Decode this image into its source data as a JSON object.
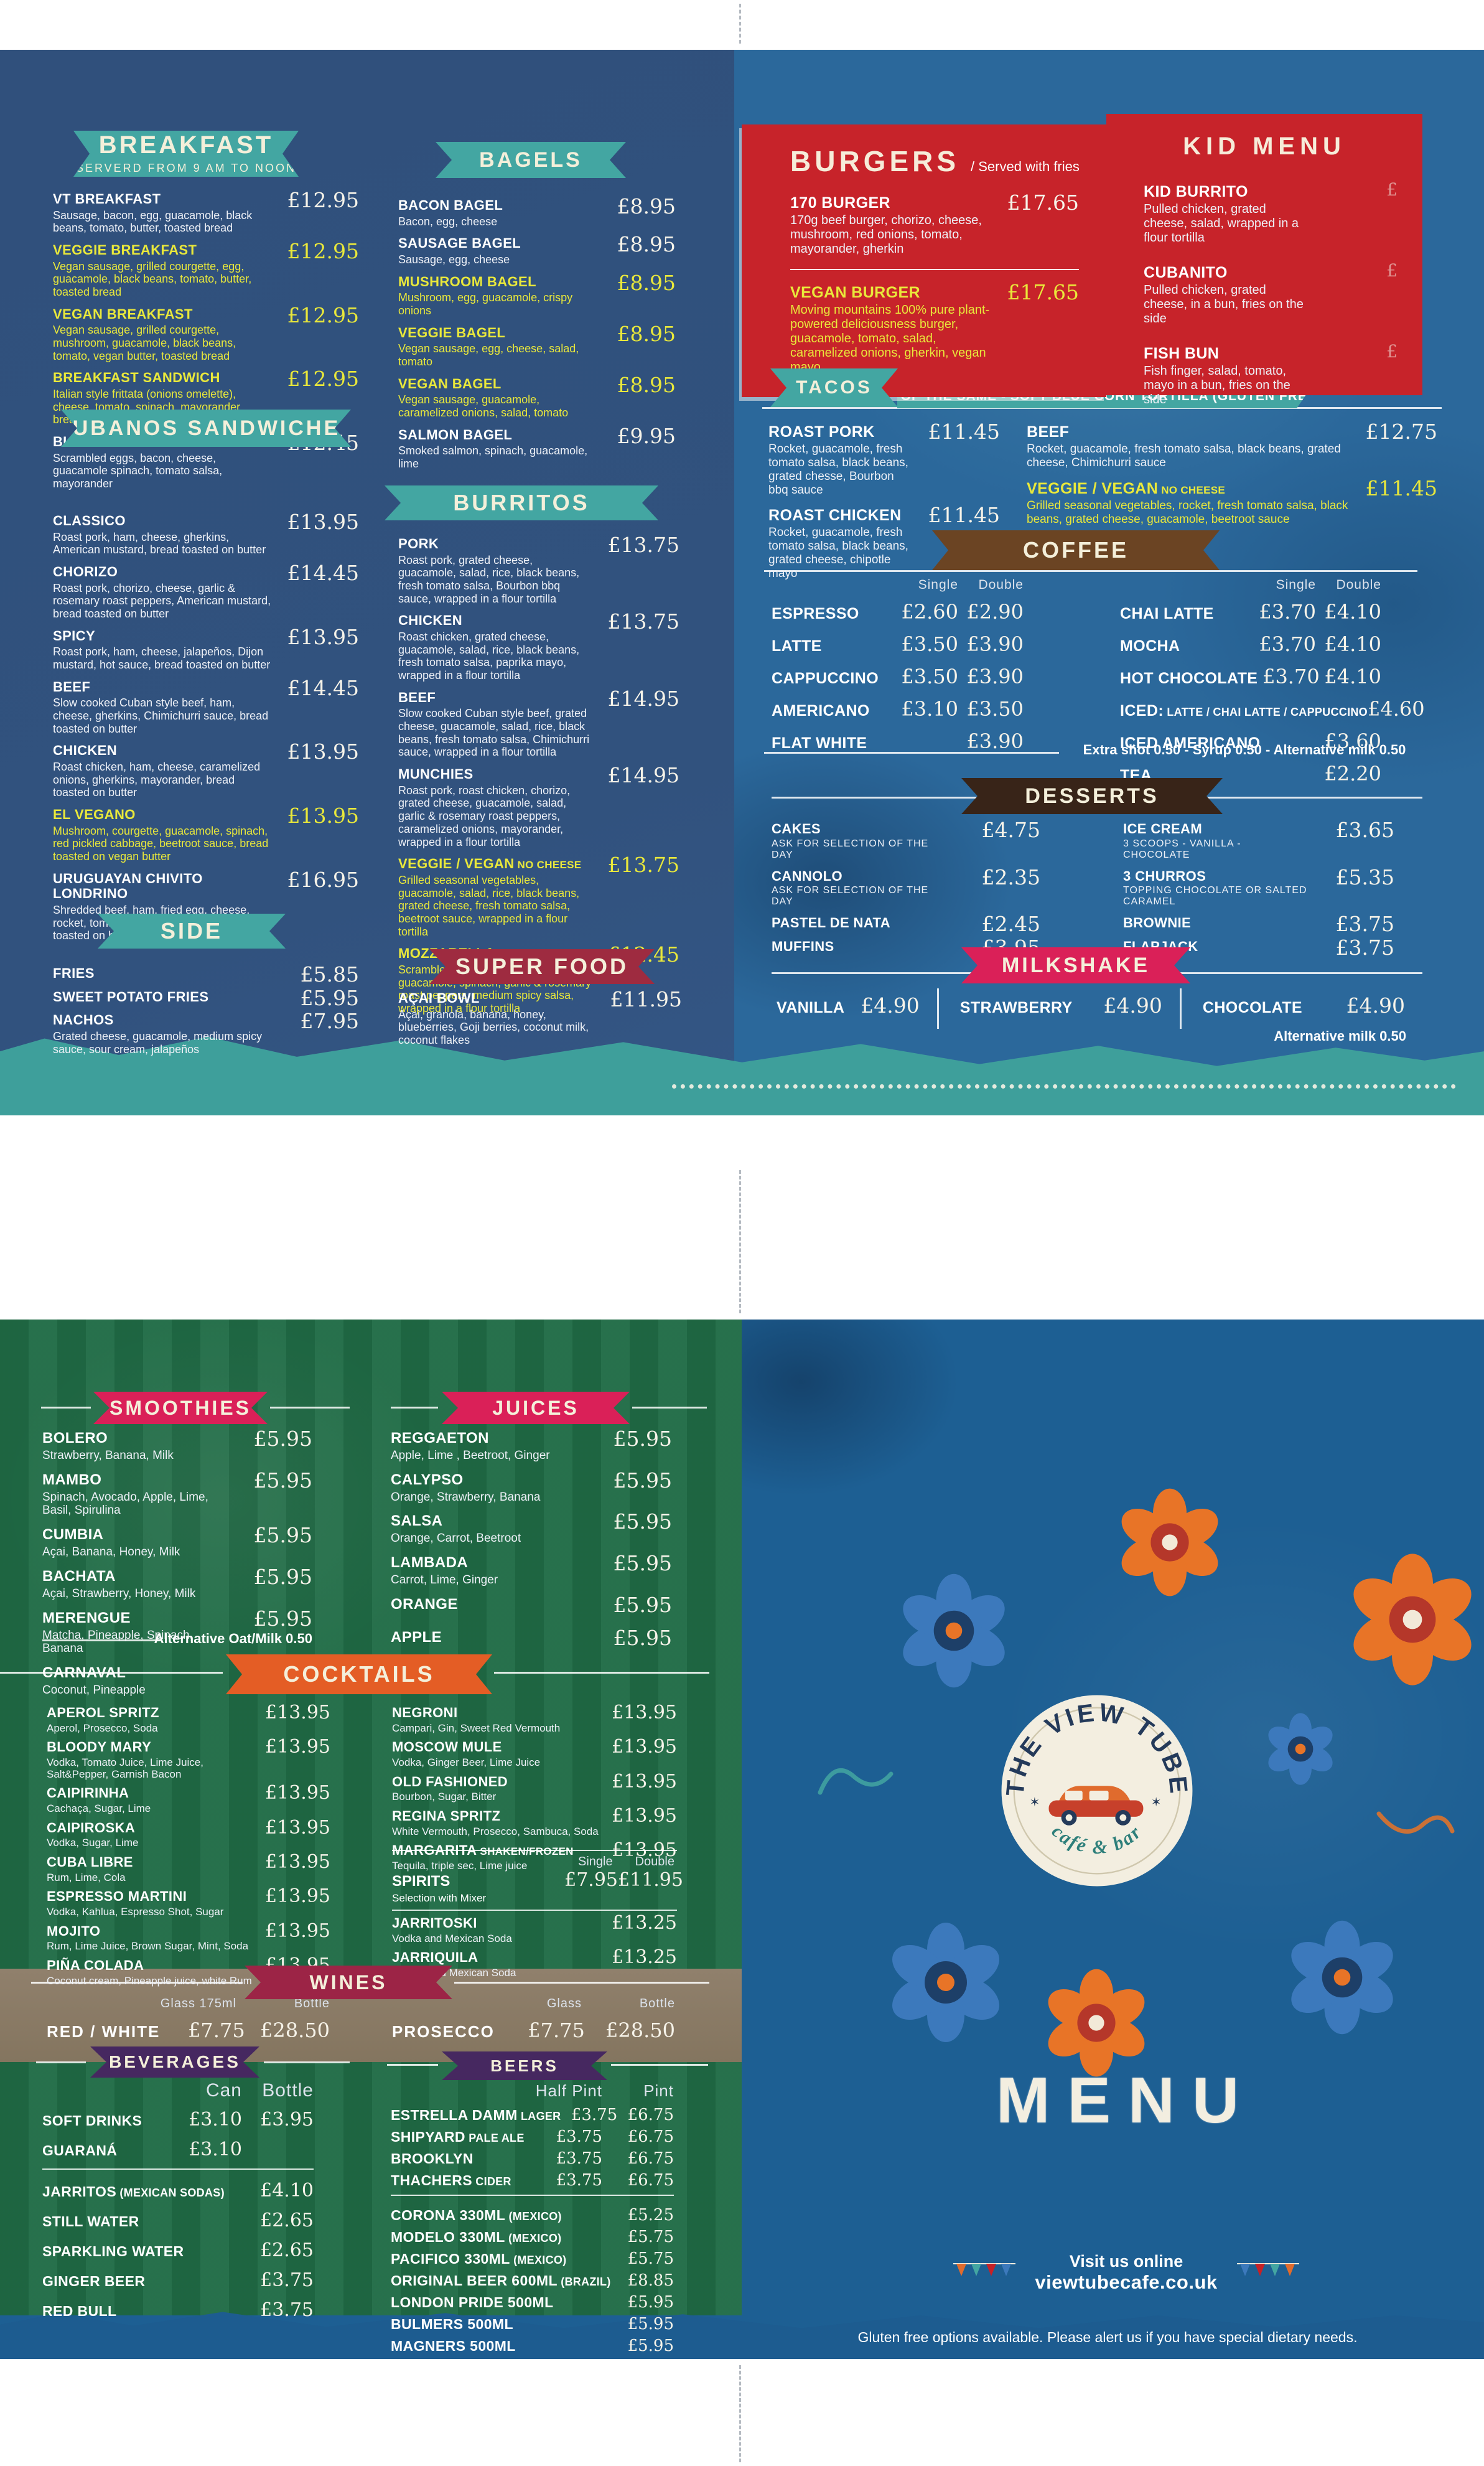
{
  "page1": {
    "breakfast": {
      "title": "BREAKFAST",
      "subtitle": "SERVERD FROM 9 AM TO NOON",
      "items": [
        {
          "n": "VT BREAKFAST",
          "p": "£12.95",
          "d": "Sausage, bacon, egg, guacamole, black beans, tomato, butter, toasted bread"
        },
        {
          "n": "VEGGIE BREAKFAST",
          "p": "£12.95",
          "y": true,
          "d": "Vegan sausage, grilled courgette, egg, guacamole, black beans, tomato, butter, toasted bread"
        },
        {
          "n": "VEGAN BREAKFAST",
          "p": "£12.95",
          "y": true,
          "d": "Vegan sausage, grilled courgette, mushroom, guacamole, black beans, tomato, vegan butter, toasted bread"
        },
        {
          "n": "BREAKFAST SANDWICH",
          "p": "£12.95",
          "y": true,
          "d": "Italian style frittata (onions omelette), cheese, tomato, spinach, mayorander, bread toasted on butter"
        },
        {
          "n": "BURRITO BREAKFAST",
          "p": "£12.45",
          "d": "Scrambled eggs, bacon, cheese, guacamole spinach, tomato salsa, mayorander"
        }
      ]
    },
    "cubanos": {
      "title": "CUBANOS SANDWICHES",
      "items": [
        {
          "n": "CLASSICO",
          "p": "£13.95",
          "d": "Roast pork, ham, cheese, gherkins, American mustard, bread toasted on butter"
        },
        {
          "n": "CHORIZO",
          "p": "£14.45",
          "d": "Roast pork, chorizo, cheese, garlic & rosemary roast peppers, American mustard, bread toasted on butter"
        },
        {
          "n": "SPICY",
          "p": "£13.95",
          "d": "Roast pork, ham, cheese, jalapeños, Dijon mustard, hot sauce, bread toasted on butter"
        },
        {
          "n": "BEEF",
          "p": "£14.45",
          "d": "Slow cooked Cuban style beef, ham, cheese, gherkins, Chimichurri sauce, bread toasted on butter"
        },
        {
          "n": "CHICKEN",
          "p": "£13.95",
          "d": "Roast chicken, ham, cheese, caramelized onions, gherkins, mayorander, bread toasted on butter"
        },
        {
          "n": "EL VEGANO",
          "p": "£13.95",
          "y": true,
          "d": "Mushroom, courgette, guacamole, spinach, red pickled cabbage, beetroot sauce, bread toasted on vegan butter"
        },
        {
          "n": "URUGUAYAN CHIVITO LONDRINO",
          "p": "£16.95",
          "d": "Shredded beef, ham, fried egg, cheese, rocket, tomato, mayonnaise, ciabatta bread toasted on butter, fries on the side"
        }
      ]
    },
    "side": {
      "title": "SIDE",
      "items": [
        {
          "n": "FRIES",
          "p": "£5.85"
        },
        {
          "n": "SWEET POTATO FRIES",
          "p": "£5.95"
        },
        {
          "n": "NACHOS",
          "p": "£7.95",
          "d": "Grated cheese, guacamole, medium spicy sauce, sour cream, jalapeños"
        }
      ]
    },
    "bagels": {
      "title": "BAGELS",
      "items": [
        {
          "n": "BACON BAGEL",
          "p": "£8.95",
          "d": "Bacon, egg, cheese"
        },
        {
          "n": "SAUSAGE BAGEL",
          "p": "£8.95",
          "d": "Sausage, egg, cheese"
        },
        {
          "n": "MUSHROOM BAGEL",
          "p": "£8.95",
          "y": true,
          "d": "Mushroom, egg, guacamole, crispy onions"
        },
        {
          "n": "VEGGIE BAGEL",
          "p": "£8.95",
          "y": true,
          "d": "Vegan sausage, egg, cheese, salad, tomato"
        },
        {
          "n": "VEGAN BAGEL",
          "p": "£8.95",
          "y": true,
          "d": "Vegan sausage, guacamole, caramelized onions, salad, tomato"
        },
        {
          "n": "SALMON BAGEL",
          "p": "£9.95",
          "d": "Smoked salmon, spinach, guacamole, lime"
        }
      ]
    },
    "burritos": {
      "title": "BURRITOS",
      "items": [
        {
          "n": "PORK",
          "p": "£13.75",
          "d": "Roast pork, grated cheese, guacamole, salad, rice, black beans, fresh tomato salsa, Bourbon bbq sauce, wrapped in a flour tortilla"
        },
        {
          "n": "CHICKEN",
          "p": "£13.75",
          "d": "Roast chicken, grated cheese, guacamole, salad, rice, black beans, fresh tomato salsa, paprika mayo, wrapped in a flour tortilla"
        },
        {
          "n": "BEEF",
          "p": "£14.95",
          "d": "Slow cooked Cuban style beef, grated cheese, guacamole, salad, rice, black beans, fresh tomato salsa, Chimichurri sauce, wrapped in a flour tortilla"
        },
        {
          "n": "MUNCHIES",
          "p": "£14.95",
          "d": "Roast pork, roast chicken, chorizo, grated cheese, guacamole, salad, garlic & rosemary roast peppers, caramelized onions, mayorander, wrapped in a flour tortilla"
        },
        {
          "n": "VEGGIE / VEGAN",
          "sfx": "NO CHEESE",
          "p": "£13.75",
          "y": true,
          "d": "Grilled seasonal vegetables, guacamole, salad, rice, black beans, grated cheese, fresh tomato salsa, beetroot sauce, wrapped in a flour tortilla"
        },
        {
          "n": "MOZZARELLA",
          "p": "£12.45",
          "y": true,
          "d": "Scrambled eggs, mozzarella cheese, guacamole, spinach, garlic & rosemary roast peppers, medium spicy salsa, wrapped in a flour tortilla"
        }
      ]
    },
    "superfood": {
      "title": "SUPER FOOD",
      "items": [
        {
          "n": "AÇAI BOWL",
          "p": "£11.95",
          "d": "Açai, granola, banana, honey, blueberries, Goji berries, coconut milk, coconut flakes"
        }
      ]
    },
    "burgers": {
      "title": "BURGERS",
      "note": "/ Served with fries",
      "items": [
        {
          "n": "170 BURGER",
          "p": "£17.65",
          "d": "170g beef burger, chorizo, cheese, mushroom, red onions, tomato, mayorander, gherkin"
        },
        {
          "n": "VEGAN BURGER",
          "p": "£17.65",
          "y": true,
          "d": "Moving mountains 100% pure plant-powered deliciousness burger, guacamole, tomato, salad, caramelized onions, gherkin, vegan mayo"
        }
      ]
    },
    "kidmenu": {
      "title": "KID MENU",
      "items": [
        {
          "n": "KID BURRITO",
          "p": "£",
          "d": "Pulled chicken, grated cheese, salad, wrapped in a flour tortilla"
        },
        {
          "n": "CUBANITO",
          "p": "£",
          "d": "Pulled chicken, grated cheese, in a bun, fries on the side"
        },
        {
          "n": "FISH BUN",
          "p": "£",
          "d": "Fish finger, salad, tomato, mayo in a bun, fries on the side"
        }
      ]
    },
    "tacos": {
      "title": "TACOS",
      "subtitle": "3 OF THE SAME - SOFT BLUE CORN TORTILLA (GLUTEN FREE)",
      "left": [
        {
          "n": "ROAST PORK",
          "p": "£11.45",
          "d": "Rocket, guacamole, fresh tomato salsa, black beans, grated chesse, Bourbon bbq sauce"
        },
        {
          "n": "ROAST CHICKEN",
          "p": "£11.45",
          "d": "Rocket, guacamole, fresh tomato salsa, black beans, grated cheese, chipotle mayo"
        }
      ],
      "right": [
        {
          "n": "BEEF",
          "p": "£12.75",
          "d": "Rocket, guacamole, fresh tomato salsa, black beans, grated cheese, Chimichurri sauce"
        },
        {
          "n": "VEGGIE / VEGAN",
          "sfx": "NO CHEESE",
          "p": "£11.45",
          "y": true,
          "d": "Grilled seasonal vegetables, rocket, fresh tomato salsa, black beans, grated cheese, guacamole, beetroot sauce"
        }
      ]
    },
    "coffee": {
      "title": "COFFEE",
      "col_single": "Single",
      "col_double": "Double",
      "left": [
        {
          "n": "ESPRESSO",
          "a": "£2.60",
          "b": "£2.90"
        },
        {
          "n": "LATTE",
          "a": "£3.50",
          "b": "£3.90"
        },
        {
          "n": "CAPPUCCINO",
          "a": "£3.50",
          "b": "£3.90"
        },
        {
          "n": "AMERICANO",
          "a": "£3.10",
          "b": "£3.50"
        },
        {
          "n": "FLAT WHITE",
          "a": "",
          "b": "£3.90"
        }
      ],
      "right": [
        {
          "n": "CHAI LATTE",
          "a": "£3.70",
          "b": "£4.10"
        },
        {
          "n": "MOCHA",
          "a": "£3.70",
          "b": "£4.10"
        },
        {
          "n": "HOT CHOCOLATE",
          "a": "£3.70",
          "b": "£4.10"
        },
        {
          "n": "ICED:",
          "sfx": "LATTE / CHAI LATTE / CAPPUCCINO",
          "a": "",
          "b": "£4.60"
        },
        {
          "n": "ICED AMERICANO",
          "a": "",
          "b": "£3.60"
        },
        {
          "n": "TEA",
          "a": "",
          "b": "£2.20"
        }
      ],
      "note": "Extra shot 0.50 - Syrup 0.50 - Alternative milk 0.50"
    },
    "desserts": {
      "title": "DESSERTS",
      "left": [
        {
          "n": "CAKES",
          "p": "£4.75",
          "sub": "ASK FOR SELECTION OF THE DAY"
        },
        {
          "n": "CANNOLO",
          "p": "£2.35",
          "sub": "ASK FOR SELECTION OF THE DAY"
        },
        {
          "n": "PASTEL DE NATA",
          "p": "£2.45"
        },
        {
          "n": "MUFFINS",
          "p": "£3.95"
        }
      ],
      "right": [
        {
          "n": "ICE CREAM",
          "p": "£3.65",
          "sub": "3 SCOOPS - VANILLA - CHOCOLATE"
        },
        {
          "n": "3 CHURROS",
          "p": "£5.35",
          "sub": "TOPPING CHOCOLATE OR SALTED CARAMEL"
        },
        {
          "n": "BROWNIE",
          "p": "£3.75"
        },
        {
          "n": "FLAPJACK",
          "p": "£3.75"
        }
      ]
    },
    "milkshake": {
      "title": "MILKSHAKE",
      "items": [
        {
          "n": "VANILLA",
          "p": "£4.90"
        },
        {
          "n": "STRAWBERRY",
          "p": "£4.90"
        },
        {
          "n": "CHOCOLATE",
          "p": "£4.90"
        }
      ],
      "note": "Alternative milk 0.50"
    }
  },
  "page2": {
    "smoothies": {
      "title": "SMOOTHIES",
      "items": [
        {
          "n": "BOLERO",
          "p": "£5.95",
          "d": "Strawberry, Banana, Milk"
        },
        {
          "n": "MAMBO",
          "p": "£5.95",
          "d": "Spinach, Avocado, Apple, Lime, Basil, Spirulina"
        },
        {
          "n": "CUMBIA",
          "p": "£5.95",
          "d": "Açai, Banana, Honey, Milk"
        },
        {
          "n": "BACHATA",
          "p": "£5.95",
          "d": "Açai, Strawberry, Honey, Milk"
        },
        {
          "n": "MERENGUE",
          "p": "£5.95",
          "d": "Matcha, Pineapple, Spinach, Banana"
        },
        {
          "n": "CARNAVAL",
          "p": "£5.95",
          "d": "Coconut, Pineapple"
        }
      ],
      "note": "Alternative Oat/Milk 0.50"
    },
    "juices": {
      "title": "JUICES",
      "items": [
        {
          "n": "REGGAETON",
          "p": "£5.95",
          "d": "Apple, Lime , Beetroot, Ginger"
        },
        {
          "n": "CALYPSO",
          "p": "£5.95",
          "d": "Orange, Strawberry, Banana"
        },
        {
          "n": "SALSA",
          "p": "£5.95",
          "d": "Orange, Carrot, Beetroot"
        },
        {
          "n": "LAMBADA",
          "p": "£5.95",
          "d": "Carrot, Lime, Ginger"
        },
        {
          "n": "ORANGE",
          "p": "£5.95"
        },
        {
          "n": "APPLE",
          "p": "£5.95"
        }
      ]
    },
    "cocktails": {
      "title": "COCKTAILS",
      "left": [
        {
          "n": "APEROL SPRITZ",
          "p": "£13.95",
          "d": "Aperol, Prosecco, Soda"
        },
        {
          "n": "BLOODY MARY",
          "p": "£13.95",
          "d": "Vodka, Tomato Juice, Lime Juice, Salt&Pepper, Garnish Bacon"
        },
        {
          "n": "CAIPIRINHA",
          "p": "£13.95",
          "d": "Cachaça, Sugar, Lime"
        },
        {
          "n": "CAIPIROSKA",
          "p": "£13.95",
          "d": "Vodka, Sugar, Lime"
        },
        {
          "n": "CUBA LIBRE",
          "p": "£13.95",
          "d": "Rum, Lime, Cola"
        },
        {
          "n": "ESPRESSO MARTINI",
          "p": "£13.95",
          "d": "Vodka, Kahlua, Espresso Shot, Sugar"
        },
        {
          "n": "MOJITO",
          "p": "£13.95",
          "d": "Rum, Lime Juice, Brown Sugar, Mint, Soda"
        },
        {
          "n": "PIÑA COLADA",
          "p": "£13.95",
          "d": "Coconut cream, Pineapple juice, white Rum"
        }
      ],
      "right1": [
        {
          "n": "NEGRONI",
          "p": "£13.95",
          "d": "Campari, Gin, Sweet Red Vermouth"
        },
        {
          "n": "MOSCOW MULE",
          "p": "£13.95",
          "d": "Vodka, Ginger Beer, Lime Juice"
        },
        {
          "n": "OLD FASHIONED",
          "p": "£13.95",
          "d": "Bourbon, Sugar, Bitter"
        },
        {
          "n": "REGINA SPRITZ",
          "p": "£13.95",
          "d": "White Vermouth, Prosecco, Sambuca, Soda"
        },
        {
          "n": "MARGARITA",
          "sfx": "SHAKEN/FROZEN",
          "p": "£13.95",
          "d": "Tequila, triple sec, Lime juice"
        }
      ],
      "spirits": {
        "n": "SPIRITS",
        "d": "Selection with Mixer",
        "col_single": "Single",
        "col_double": "Double",
        "single": "£7.95",
        "double": "£11.95"
      },
      "right2": [
        {
          "n": "JARRITOSKI",
          "p": "£13.25",
          "d": "Vodka and Mexican Soda"
        },
        {
          "n": "JARRIQUILA",
          "p": "£13.25",
          "d": "Tequila and Mexican Soda"
        }
      ]
    },
    "wines": {
      "title": "WINES",
      "left": {
        "glass_label": "Glass 175ml",
        "bottle_label": "Bottle",
        "n": "RED / WHITE",
        "glass": "£7.75",
        "bottle": "£28.50"
      },
      "right": {
        "glass_label": "Glass",
        "bottle_label": "Bottle",
        "n": "PROSECCO",
        "glass": "£7.75",
        "bottle": "£28.50"
      }
    },
    "beverages": {
      "title": "BEVERAGES",
      "col_a": "Can",
      "col_b": "Bottle",
      "rows1": [
        {
          "n": "SOFT DRINKS",
          "a": "£3.10",
          "b": "£3.95"
        },
        {
          "n": "GUARANÁ",
          "a": "£3.10",
          "b": ""
        }
      ],
      "rows2": [
        {
          "n": "JARRITOS",
          "sfx": "(MEXICAN SODAS)",
          "a": "",
          "b": "£4.10"
        },
        {
          "n": "STILL WATER",
          "a": "",
          "b": "£2.65"
        },
        {
          "n": "SPARKLING WATER",
          "a": "",
          "b": "£2.65"
        },
        {
          "n": "GINGER BEER",
          "a": "",
          "b": "£3.75"
        },
        {
          "n": "RED BULL",
          "a": "",
          "b": "£3.75"
        }
      ]
    },
    "beers": {
      "title": "BEERS",
      "col_a": "Half Pint",
      "col_b": "Pint",
      "rows1": [
        {
          "n": "ESTRELLA  DAMM",
          "sfx": "LAGER",
          "a": "£3.75",
          "b": "£6.75"
        },
        {
          "n": "SHIPYARD",
          "sfx": "PALE ALE",
          "a": "£3.75",
          "b": "£6.75"
        },
        {
          "n": "BROOKLYN",
          "a": "£3.75",
          "b": "£6.75"
        },
        {
          "n": "THACHERS",
          "sfx": "CIDER",
          "a": "£3.75",
          "b": "£6.75"
        }
      ],
      "rows2": [
        {
          "n": "CORONA 330ML",
          "sfx": "(MEXICO)",
          "a": "",
          "b": "£5.25"
        },
        {
          "n": "MODELO 330ML",
          "sfx": "(MEXICO)",
          "a": "",
          "b": "£5.75"
        },
        {
          "n": "PACIFICO 330ML",
          "sfx": "(MEXICO)",
          "a": "",
          "b": "£5.75"
        },
        {
          "n": "ORIGINAL BEER 600ML",
          "sfx": "(BRAZIL)",
          "a": "",
          "b": "£8.85"
        },
        {
          "n": "LONDON PRIDE 500ML",
          "a": "",
          "b": "£5.95"
        },
        {
          "n": "BULMERS 500ML",
          "a": "",
          "b": "£5.95"
        },
        {
          "n": "MAGNERS 500ML",
          "a": "",
          "b": "£5.95"
        }
      ]
    },
    "logo": {
      "line1": "THE VIEW TUBE",
      "line2": "café & bar"
    },
    "menu_word": "MENU",
    "visit": {
      "line1": "Visit us online",
      "url": "viewtubecafe.co.uk"
    },
    "footer": "Gluten free options available. Please alert us if you have special dietary needs."
  }
}
